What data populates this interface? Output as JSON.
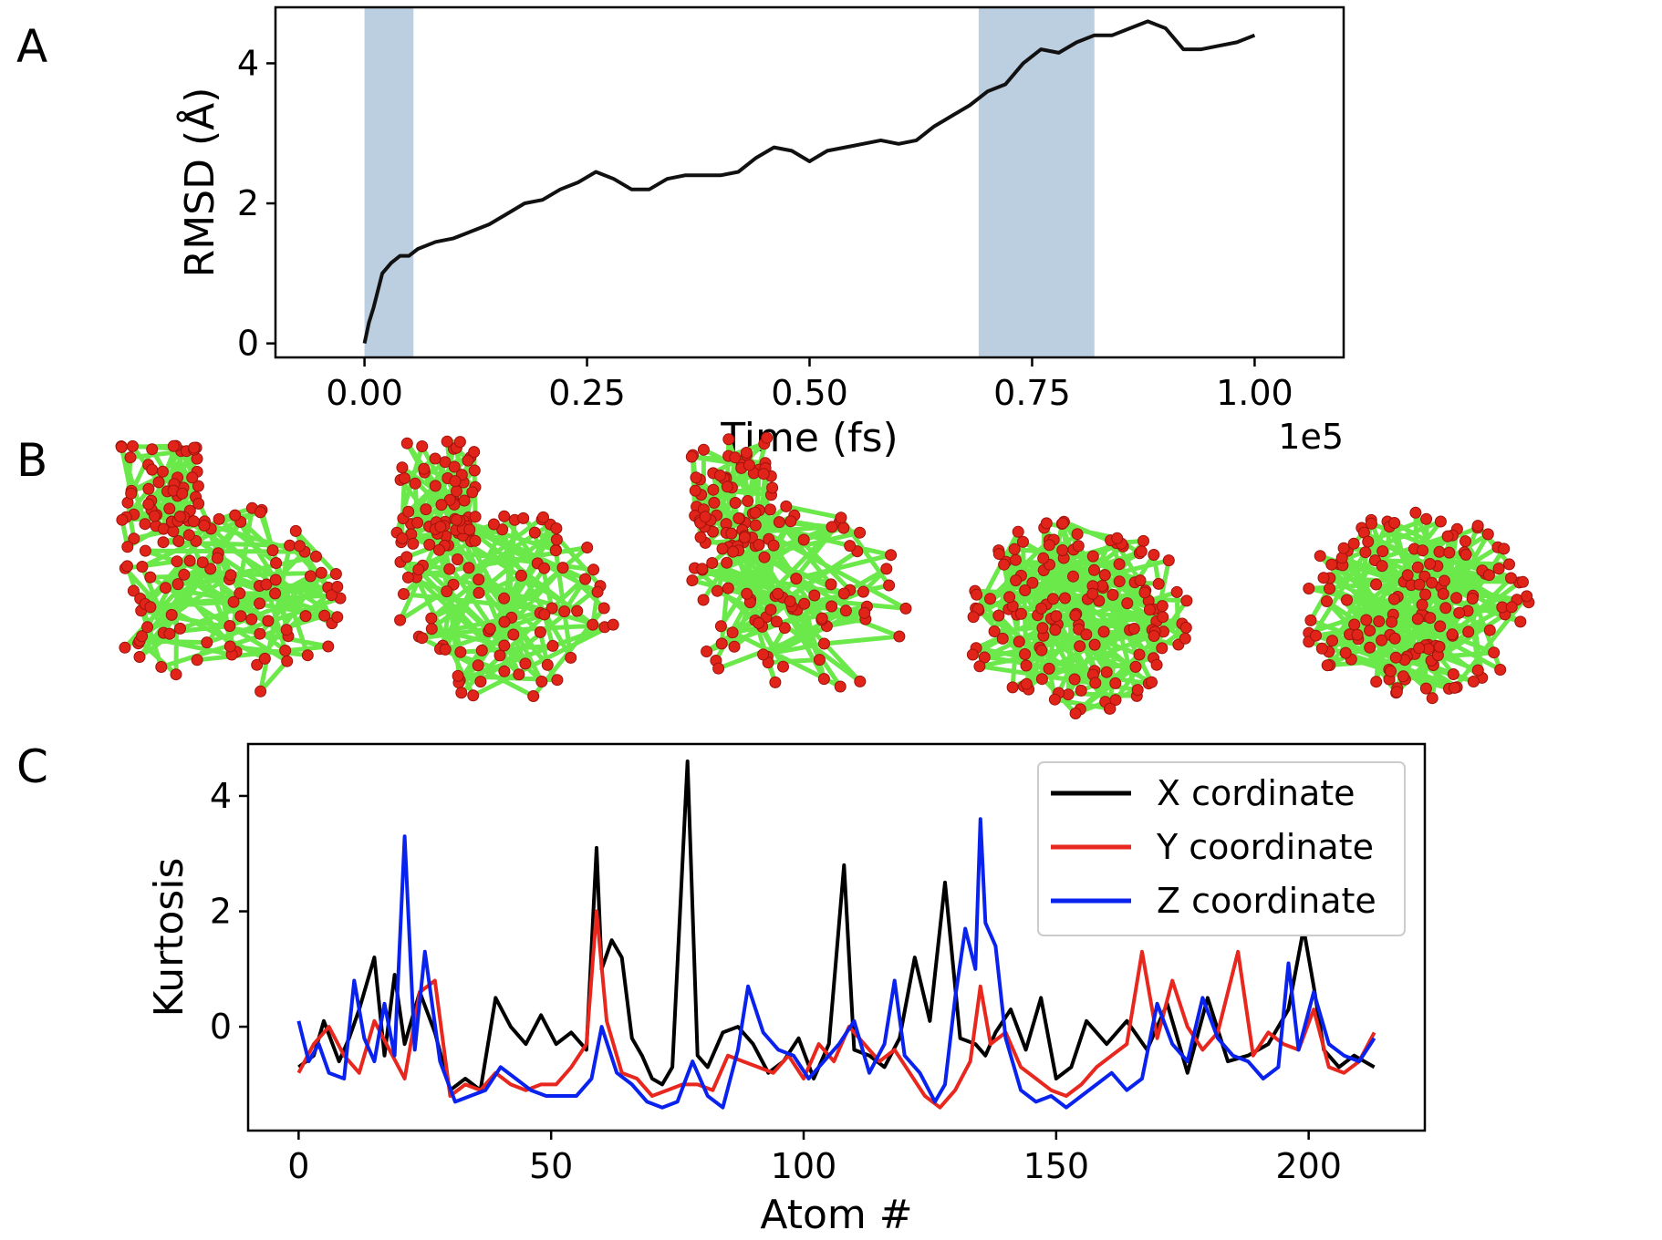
{
  "panels": {
    "a_letter": "A",
    "b_letter": "B",
    "c_letter": "C"
  },
  "colors": {
    "rmsd_line": "#111111",
    "highlight_band": "#bccfe0",
    "x_series": "#000000",
    "y_series": "#e8271e",
    "z_series": "#0a22ee",
    "ribbon": "#6be84a",
    "atom": "#e0241a"
  },
  "structures": {
    "count": 5,
    "icon_names": [
      "protein-structure-icon-1",
      "protein-structure-icon-2",
      "protein-structure-icon-3",
      "protein-structure-icon-4",
      "protein-structure-icon-5"
    ]
  },
  "chart_data": [
    {
      "type": "line",
      "title": "",
      "xlabel": "Time (fs)",
      "ylabel": "RMSD (Å)",
      "x_scale_note": "1e5",
      "xlim": [
        -0.1,
        1.1
      ],
      "ylim": [
        -0.2,
        4.8
      ],
      "xticks": [
        0.0,
        0.25,
        0.5,
        0.75,
        1.0
      ],
      "xtick_labels": [
        "0.00",
        "0.25",
        "0.50",
        "0.75",
        "1.00"
      ],
      "yticks": [
        0,
        2,
        4
      ],
      "ytick_labels": [
        "0",
        "2",
        "4"
      ],
      "highlight_bands": [
        {
          "x_start": 0.0,
          "x_end": 0.055
        },
        {
          "x_start": 0.69,
          "x_end": 0.82
        }
      ],
      "grid": false,
      "series": [
        {
          "x": [
            0.0,
            0.005,
            0.01,
            0.02,
            0.03,
            0.04,
            0.05,
            0.06,
            0.08,
            0.1,
            0.12,
            0.14,
            0.16,
            0.18,
            0.2,
            0.22,
            0.24,
            0.26,
            0.28,
            0.3,
            0.32,
            0.34,
            0.36,
            0.38,
            0.4,
            0.42,
            0.44,
            0.46,
            0.48,
            0.5,
            0.52,
            0.54,
            0.56,
            0.58,
            0.6,
            0.62,
            0.64,
            0.66,
            0.68,
            0.7,
            0.72,
            0.74,
            0.76,
            0.78,
            0.8,
            0.82,
            0.84,
            0.86,
            0.88,
            0.9,
            0.92,
            0.94,
            0.96,
            0.98,
            1.0
          ],
          "values": [
            0.0,
            0.3,
            0.5,
            1.0,
            1.15,
            1.25,
            1.25,
            1.35,
            1.45,
            1.5,
            1.6,
            1.7,
            1.85,
            2.0,
            2.05,
            2.2,
            2.3,
            2.45,
            2.35,
            2.2,
            2.2,
            2.35,
            2.4,
            2.4,
            2.4,
            2.45,
            2.65,
            2.8,
            2.75,
            2.6,
            2.75,
            2.8,
            2.85,
            2.9,
            2.85,
            2.9,
            3.1,
            3.25,
            3.4,
            3.6,
            3.7,
            4.0,
            4.2,
            4.15,
            4.3,
            4.4,
            4.4,
            4.5,
            4.6,
            4.5,
            4.2,
            4.2,
            4.25,
            4.3,
            4.4
          ]
        }
      ]
    },
    {
      "type": "line",
      "title": "",
      "xlabel": "Atom #",
      "ylabel": "Kurtosis",
      "xlim": [
        -10,
        223
      ],
      "ylim": [
        -1.8,
        4.9
      ],
      "xticks": [
        0,
        50,
        100,
        150,
        200
      ],
      "xtick_labels": [
        "0",
        "50",
        "100",
        "150",
        "200"
      ],
      "yticks": [
        0,
        2,
        4
      ],
      "ytick_labels": [
        "0",
        "2",
        "4"
      ],
      "legend_position": "top-right",
      "grid": false,
      "series": [
        {
          "name": "X cordinate",
          "x": [
            0,
            3,
            5,
            8,
            10,
            12,
            15,
            17,
            19,
            21,
            24,
            27,
            30,
            33,
            36,
            39,
            42,
            45,
            48,
            51,
            54,
            57,
            59,
            60,
            62,
            64,
            66,
            68,
            70,
            72,
            74,
            77,
            79,
            81,
            84,
            87,
            90,
            93,
            96,
            99,
            102,
            105,
            108,
            110,
            113,
            116,
            119,
            122,
            125,
            128,
            131,
            134,
            136,
            138,
            141,
            144,
            147,
            150,
            153,
            156,
            160,
            164,
            168,
            172,
            176,
            180,
            184,
            188,
            192,
            196,
            199,
            201,
            203,
            206,
            209,
            213
          ],
          "values": [
            -0.7,
            -0.5,
            0.1,
            -0.6,
            -0.2,
            0.3,
            1.2,
            -0.5,
            0.9,
            -0.3,
            0.6,
            -0.1,
            -1.1,
            -0.9,
            -1.1,
            0.5,
            0.0,
            -0.3,
            0.2,
            -0.3,
            -0.1,
            -0.4,
            3.1,
            1.0,
            1.5,
            1.2,
            -0.2,
            -0.5,
            -0.9,
            -1.0,
            -0.7,
            4.6,
            -0.5,
            -0.7,
            -0.1,
            0.0,
            -0.3,
            -0.8,
            -0.6,
            -0.2,
            -0.9,
            -0.3,
            2.8,
            -0.4,
            -0.5,
            -0.7,
            -0.2,
            1.2,
            0.1,
            2.5,
            -0.2,
            -0.3,
            -0.5,
            -0.1,
            0.3,
            -0.4,
            0.5,
            -0.9,
            -0.7,
            0.1,
            -0.3,
            0.1,
            -0.4,
            0.4,
            -0.8,
            0.5,
            -0.6,
            -0.5,
            -0.3,
            0.3,
            1.7,
            0.7,
            -0.4,
            -0.7,
            -0.5,
            -0.7
          ]
        },
        {
          "name": "Y coordinate",
          "x": [
            0,
            3,
            6,
            9,
            12,
            15,
            18,
            21,
            24,
            27,
            30,
            33,
            36,
            39,
            42,
            45,
            48,
            51,
            54,
            57,
            59,
            61,
            64,
            67,
            70,
            73,
            76,
            79,
            82,
            85,
            88,
            91,
            94,
            97,
            100,
            103,
            106,
            109,
            112,
            115,
            118,
            121,
            124,
            127,
            130,
            133,
            135,
            137,
            140,
            143,
            146,
            149,
            152,
            155,
            158,
            161,
            164,
            167,
            170,
            173,
            176,
            179,
            182,
            186,
            189,
            192,
            195,
            198,
            201,
            204,
            207,
            210,
            213
          ],
          "values": [
            -0.8,
            -0.3,
            0.0,
            -0.5,
            -0.8,
            0.1,
            -0.4,
            -0.9,
            0.6,
            0.8,
            -1.2,
            -1.0,
            -1.1,
            -0.8,
            -1.0,
            -1.1,
            -1.0,
            -1.0,
            -0.7,
            -0.3,
            2.0,
            0.1,
            -0.8,
            -0.9,
            -1.2,
            -1.1,
            -1.0,
            -1.0,
            -1.1,
            -0.5,
            -0.6,
            -0.7,
            -0.8,
            -0.5,
            -0.9,
            -0.3,
            -0.6,
            0.0,
            -0.3,
            -0.6,
            -0.4,
            -0.8,
            -1.2,
            -1.4,
            -1.1,
            -0.6,
            0.7,
            -0.3,
            -0.1,
            -0.7,
            -0.9,
            -1.1,
            -1.2,
            -1.0,
            -0.7,
            -0.5,
            -0.3,
            1.3,
            -0.2,
            0.8,
            0.0,
            -0.4,
            -0.1,
            1.3,
            -0.5,
            -0.1,
            -0.3,
            -0.4,
            0.3,
            -0.7,
            -0.8,
            -0.6,
            -0.1
          ]
        },
        {
          "name": "Z coordinate",
          "x": [
            0,
            2,
            4,
            6,
            9,
            11,
            13,
            15,
            17,
            19,
            21,
            23,
            25,
            28,
            31,
            34,
            37,
            40,
            43,
            46,
            49,
            52,
            55,
            58,
            60,
            63,
            66,
            69,
            72,
            75,
            78,
            81,
            84,
            87,
            89,
            92,
            95,
            98,
            101,
            104,
            107,
            110,
            113,
            116,
            118,
            120,
            123,
            126,
            128,
            130,
            132,
            134,
            135,
            136,
            138,
            140,
            143,
            146,
            149,
            152,
            155,
            158,
            161,
            164,
            167,
            170,
            173,
            176,
            179,
            182,
            185,
            188,
            191,
            194,
            196,
            198,
            201,
            204,
            207,
            210,
            213
          ],
          "values": [
            0.1,
            -0.6,
            -0.3,
            -0.8,
            -0.9,
            0.8,
            -0.2,
            -0.6,
            0.4,
            -0.5,
            3.3,
            -0.4,
            1.3,
            -0.6,
            -1.3,
            -1.2,
            -1.1,
            -0.7,
            -0.9,
            -1.1,
            -1.2,
            -1.2,
            -1.2,
            -0.9,
            0.0,
            -0.8,
            -1.0,
            -1.3,
            -1.4,
            -1.3,
            -0.6,
            -1.2,
            -1.4,
            -0.4,
            0.7,
            -0.1,
            -0.4,
            -0.5,
            -0.9,
            -0.6,
            -0.3,
            0.1,
            -0.8,
            -0.3,
            0.8,
            -0.5,
            -0.8,
            -1.3,
            -1.0,
            0.5,
            1.7,
            1.0,
            3.6,
            1.8,
            1.4,
            -0.2,
            -1.1,
            -1.3,
            -1.2,
            -1.4,
            -1.2,
            -1.0,
            -0.8,
            -1.1,
            -0.9,
            0.4,
            -0.3,
            -0.6,
            0.5,
            -0.2,
            -0.5,
            -0.6,
            -0.9,
            -0.7,
            1.1,
            -0.4,
            0.6,
            -0.3,
            -0.5,
            -0.6,
            -0.2
          ]
        }
      ]
    }
  ]
}
